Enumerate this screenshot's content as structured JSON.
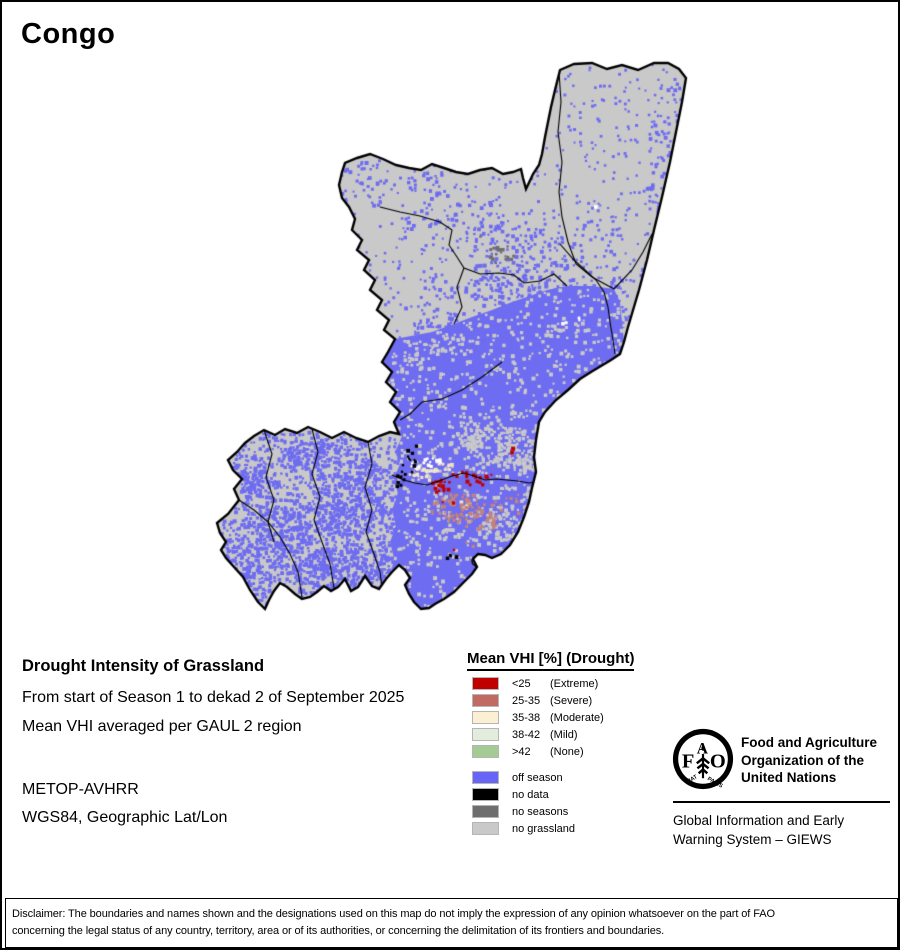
{
  "title": "Congo",
  "info": {
    "heading": "Drought Intensity of Grassland",
    "period": "From start of Season 1 to dekad 2 of September 2025",
    "aggregation": "Mean VHI averaged per GAUL 2 region",
    "sensor": "METOP-AVHRR",
    "projection": "WGS84, Geographic Lat/Lon"
  },
  "legend": {
    "title": "Mean VHI [%] (Drought)",
    "classes": [
      {
        "range": "<25",
        "label": "(Extreme)",
        "color": "#c00000"
      },
      {
        "range": "25-35",
        "label": "(Severe)",
        "color": "#c16a64"
      },
      {
        "range": "35-38",
        "label": "(Moderate)",
        "color": "#fcefd4"
      },
      {
        "range": "38-42",
        "label": "(Mild)",
        "color": "#e3eddd"
      },
      {
        "range": ">42",
        "label": "(None)",
        "color": "#a3cb93"
      }
    ],
    "season_classes": [
      {
        "label": "off season",
        "color": "#6665f5"
      },
      {
        "label": "no data",
        "color": "#000000"
      },
      {
        "label": "no seasons",
        "color": "#6e6e6e"
      },
      {
        "label": "no grassland",
        "color": "#c9c9c9"
      }
    ]
  },
  "footer": {
    "fao_lines": [
      "Food and Agriculture",
      "Organization of the",
      "United Nations"
    ],
    "giews_lines": [
      "Global Information and Early",
      "Warning System – GIEWS"
    ],
    "logo_letters": {
      "f": "F",
      "a": "A",
      "o": "O"
    },
    "logo_motto": {
      "left": "FIAT",
      "right": "PANIS"
    }
  },
  "disclaimer": {
    "line1": "Disclaimer: The boundaries and names shown and the designations used on this map do not imply the expression of any opinion whatsoever on the part of FAO",
    "line2": "concerning the legal status of any country, territory, area or of its authorities, or concerning the delimitation of its frontiers and boundaries."
  },
  "map": {
    "country": "Congo",
    "colors": {
      "land": "#c9c9c9",
      "border": "#000000",
      "off_season": "#6e6cf0",
      "extreme": "#c00000",
      "severe": "#c4837b",
      "moderate": "#f2e4c8",
      "no_data": "#000000",
      "no_seasons": "#6e6e6e",
      "water_gap": "#ffffff"
    }
  }
}
